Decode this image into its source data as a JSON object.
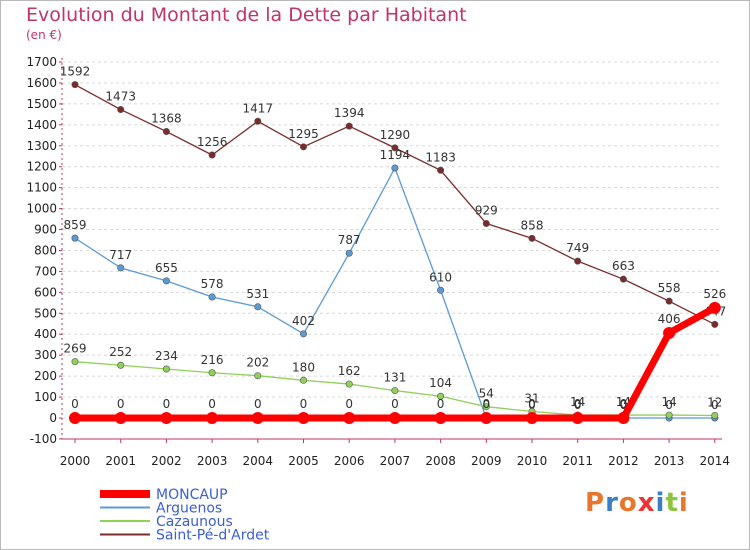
{
  "title": "Evolution du Montant de la Dette par Habitant",
  "subtitle": "(en €)",
  "logo": "Proxiti",
  "colors": {
    "title": "#c0336b",
    "logo_letters": [
      "#e8762c",
      "#3a7fc4",
      "#e8762c",
      "#e33",
      "#3a7fc4",
      "#8cc63f",
      "#e8762c"
    ]
  },
  "chart_data": {
    "type": "line",
    "x": [
      2000,
      2001,
      2002,
      2003,
      2004,
      2005,
      2006,
      2007,
      2008,
      2009,
      2010,
      2011,
      2012,
      2013,
      2014
    ],
    "ylim": [
      -100,
      1700
    ],
    "ytick_step": 100,
    "grid": "dashed-horizontal",
    "legend_position": "bottom-left",
    "series": [
      {
        "name": "Saint-Pé-d'Ardet",
        "color": "#7b2b2b",
        "values": [
          1592,
          1473,
          1368,
          1256,
          1417,
          1295,
          1394,
          1290,
          1183,
          929,
          858,
          749,
          663,
          558,
          447
        ],
        "labels": [
          "1592",
          "1473",
          "1368",
          "1256",
          "1417",
          "1295",
          "1394",
          "1290",
          "1183",
          "929",
          "858",
          "749",
          "663",
          "558",
          "447"
        ]
      },
      {
        "name": "Arguenos",
        "color": "#5b9bd5",
        "values": [
          859,
          717,
          655,
          578,
          531,
          402,
          787,
          1194,
          610,
          0,
          0,
          0,
          0,
          0,
          0
        ],
        "labels": [
          "859",
          "717",
          "655",
          "578",
          "531",
          "402",
          "787",
          "1194",
          "610",
          "0",
          "0",
          "0",
          "0",
          "0",
          "0"
        ]
      },
      {
        "name": "Cazaunous",
        "color": "#8fd15b",
        "values": [
          269,
          252,
          234,
          216,
          202,
          180,
          162,
          131,
          104,
          54,
          31,
          14,
          14,
          14,
          12
        ],
        "labels": [
          "269",
          "252",
          "234",
          "216",
          "202",
          "180",
          "162",
          "131",
          "104",
          "54",
          "31",
          "14",
          "14",
          "14",
          "12"
        ]
      },
      {
        "name": "MONCAUP",
        "color": "#ff0000",
        "values": [
          0,
          0,
          0,
          0,
          0,
          0,
          0,
          0,
          0,
          0,
          0,
          0,
          0,
          406,
          526
        ],
        "labels": [
          "0",
          "0",
          "0",
          "0",
          "0",
          "0",
          "0",
          "0",
          "0",
          "0",
          "0",
          "0",
          "0",
          "406",
          "526"
        ]
      }
    ],
    "legend_order": [
      "MONCAUP",
      "Arguenos",
      "Cazaunous",
      "Saint-Pé-d'Ardet"
    ]
  }
}
